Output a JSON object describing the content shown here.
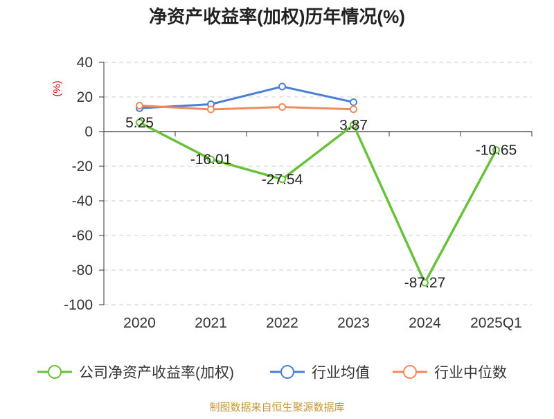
{
  "chart_data": {
    "type": "line",
    "title": "净资产收益率(加权)历年情况(%)",
    "y_unit": "(%)",
    "categories": [
      "2020",
      "2021",
      "2022",
      "2023",
      "2024",
      "2025Q1"
    ],
    "ylim": [
      -100,
      40
    ],
    "y_ticks": [
      40,
      20,
      0,
      -20,
      -40,
      -60,
      -80,
      -100
    ],
    "grid": true,
    "legend_position": "bottom",
    "series": [
      {
        "name": "公司净资产收益率(加权)",
        "color": "#67c23a",
        "values": [
          5.25,
          -16.01,
          -27.54,
          3.87,
          -87.27,
          -10.65
        ],
        "labels": [
          "5.25",
          "-16.01",
          "-27.54",
          "3.87",
          "-87.27",
          "-10.65"
        ]
      },
      {
        "name": "行业均值",
        "color": "#4a7fd8",
        "values": [
          13.5,
          15.8,
          26.0,
          17.0,
          null,
          null
        ]
      },
      {
        "name": "行业中位数",
        "color": "#f08a5d",
        "values": [
          15.0,
          12.8,
          14.2,
          12.9,
          null,
          null
        ]
      }
    ],
    "source": "制图数据来自恒生聚源数据库"
  }
}
